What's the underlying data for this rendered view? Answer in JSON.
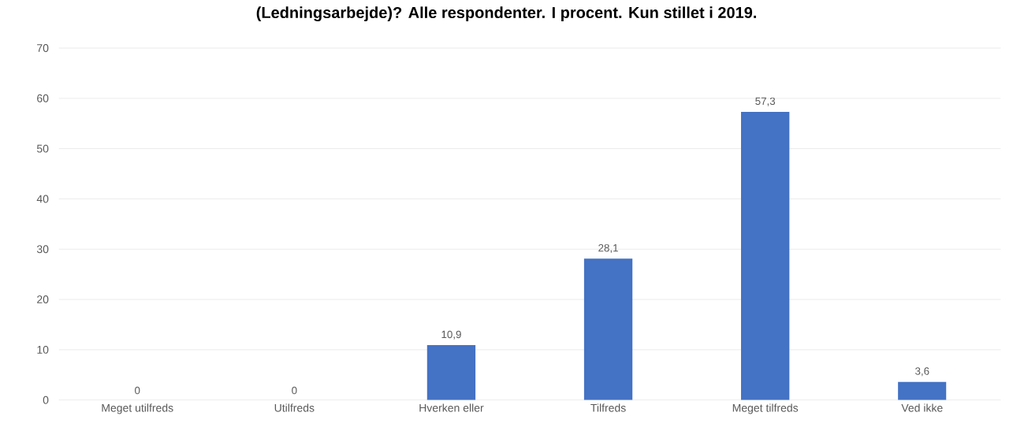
{
  "chart_data": {
    "type": "bar",
    "title": "(Ledningsarbejde)? Alle respondenter. I procent. Kun stillet i 2019.",
    "categories": [
      "Meget utilfreds",
      "Utilfreds",
      "Hverken eller",
      "Tilfreds",
      "Meget tilfreds",
      "Ved ikke"
    ],
    "values": [
      0,
      0,
      10.9,
      28.1,
      57.3,
      3.6
    ],
    "value_labels": [
      "0",
      "0",
      "10,9",
      "28,1",
      "57,3",
      "3,6"
    ],
    "color": "#4472c4",
    "ylim": [
      0,
      70
    ],
    "yticks": [
      0,
      10,
      20,
      30,
      40,
      50,
      60,
      70
    ],
    "grid": "y"
  }
}
